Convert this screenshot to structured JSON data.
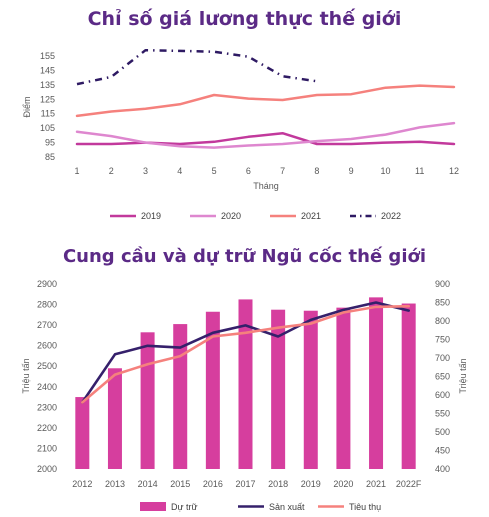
{
  "chart_data": [
    {
      "type": "line",
      "title": "Chỉ số giá lương thực thế giới",
      "xlabel": "Tháng",
      "ylabel": "Điểm",
      "x": [
        "1",
        "2",
        "3",
        "4",
        "5",
        "6",
        "7",
        "8",
        "9",
        "10",
        "11",
        "12"
      ],
      "ylim": [
        85,
        155
      ],
      "yticks": [
        "85",
        "95",
        "105",
        "115",
        "125",
        "135",
        "145",
        "155"
      ],
      "grid": false,
      "legend": "bottom",
      "series": [
        {
          "name": "2019",
          "color": "#c2399c",
          "dash": "solid",
          "values": [
            94,
            94,
            95,
            94,
            95.5,
            99,
            101.5,
            94,
            94,
            95,
            95.5,
            94
          ]
        },
        {
          "name": "2020",
          "color": "#de87cf",
          "dash": "solid",
          "values": [
            102.5,
            99.5,
            95,
            92.5,
            91.5,
            93,
            94,
            96,
            97.5,
            100.5,
            105.5,
            108.5
          ]
        },
        {
          "name": "2021",
          "color": "#f5817d",
          "dash": "solid",
          "values": [
            113.5,
            116.5,
            118.5,
            121.5,
            128,
            125.5,
            124.5,
            128,
            128.5,
            133,
            134.5,
            133.5
          ]
        },
        {
          "name": "2022",
          "color": "#2e1a63",
          "dash": "dashdot",
          "values": [
            135.5,
            140.5,
            159,
            158.5,
            158,
            154.5,
            141,
            137.5,
            null,
            null,
            null,
            null
          ]
        }
      ]
    },
    {
      "type": "bar",
      "title": "Cung cầu và dự trữ Ngũ cốc thế giới",
      "ylabel": "Triệu tấn",
      "y2label": "Triệu tấn",
      "categories": [
        "2012",
        "2013",
        "2014",
        "2015",
        "2016",
        "2017",
        "2018",
        "2019",
        "2020",
        "2021",
        "2022F"
      ],
      "ylim": [
        2000,
        2900
      ],
      "yticks": [
        "2000",
        "2100",
        "2200",
        "2300",
        "2400",
        "2500",
        "2600",
        "2700",
        "2800",
        "2900"
      ],
      "y2lim": [
        400,
        900
      ],
      "y2ticks": [
        "400",
        "450",
        "500",
        "550",
        "600",
        "650",
        "700",
        "750",
        "800",
        "850",
        "900"
      ],
      "grid": false,
      "legend": "bottom",
      "series": [
        {
          "name": "Dự trữ",
          "kind": "bar",
          "axis": "left",
          "color": "#d63e9e",
          "values": [
            2350,
            2490,
            2665,
            2705,
            2765,
            2825,
            2775,
            2770,
            2785,
            2835,
            2805
          ]
        },
        {
          "name": "Sản xuất",
          "kind": "line",
          "axis": "right",
          "color": "#35206b",
          "values": [
            580,
            710,
            733,
            728,
            768,
            788,
            758,
            803,
            830,
            850,
            828
          ]
        },
        {
          "name": "Tiêu thụ",
          "kind": "line",
          "axis": "right",
          "color": "#f5817d",
          "values": [
            580,
            655,
            683,
            705,
            758,
            768,
            782,
            793,
            823,
            838,
            840
          ]
        }
      ]
    }
  ]
}
